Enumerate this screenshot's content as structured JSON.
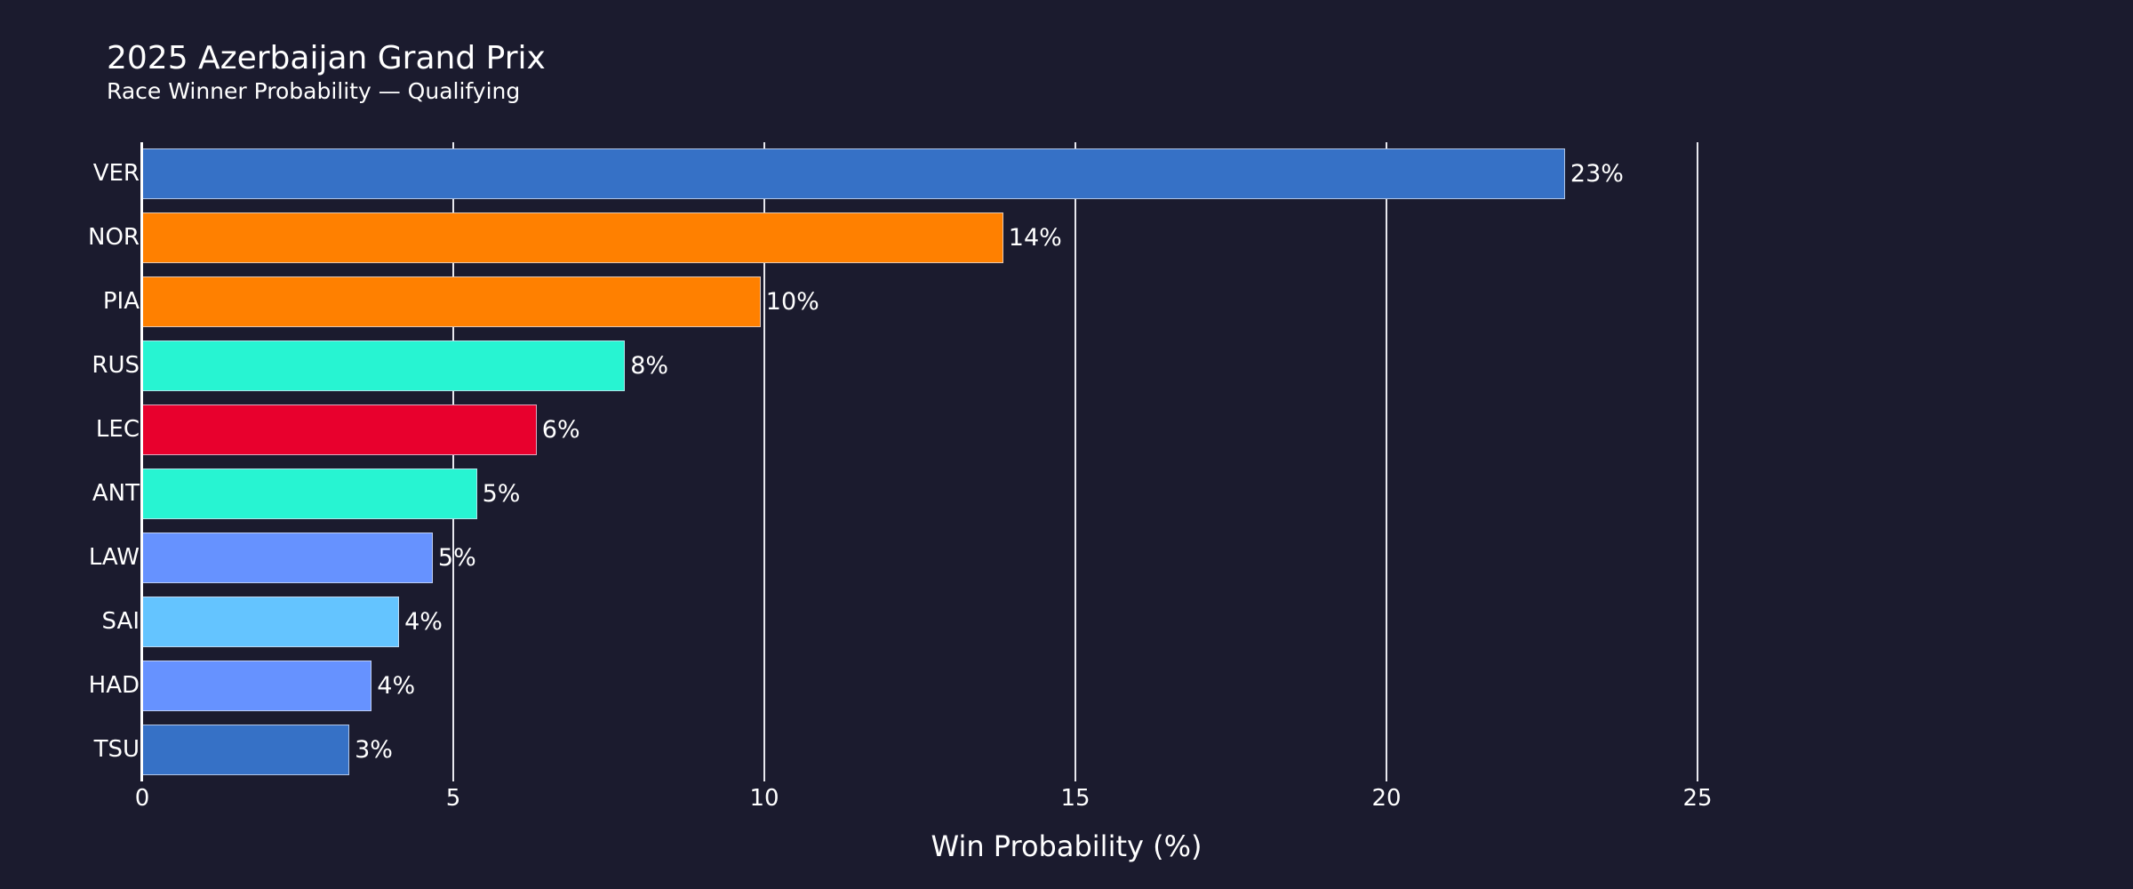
{
  "header": {
    "title": "2025 Azerbaijan Grand Prix",
    "subtitle": "Race Winner Probability — Qualifying"
  },
  "colors": {
    "background": "#1b1b2e",
    "red_bull": "#3671C6",
    "mclaren": "#FF8000",
    "mercedes": "#27F4D2",
    "ferrari": "#E8002D",
    "racing_bulls": "#6692FF",
    "williams": "#64C4FF"
  },
  "chart_data": {
    "type": "bar",
    "orientation": "horizontal",
    "title": "2025 Azerbaijan Grand Prix",
    "subtitle": "Race Winner Probability — Qualifying",
    "xlabel": "Win Probability (%)",
    "ylabel": "",
    "xlim": [
      0,
      25
    ],
    "xticks": [
      0,
      5,
      10,
      15,
      20,
      25
    ],
    "grid": "vertical",
    "legend": "none",
    "categories": [
      "VER",
      "NOR",
      "PIA",
      "RUS",
      "LEC",
      "ANT",
      "LAW",
      "SAI",
      "HAD",
      "TSU"
    ],
    "values": [
      22.87,
      13.84,
      9.94,
      7.76,
      6.34,
      5.38,
      4.67,
      4.13,
      3.69,
      3.33
    ],
    "data_labels": [
      "23%",
      "14%",
      "10%",
      "8%",
      "6%",
      "5%",
      "5%",
      "4%",
      "4%",
      "3%"
    ],
    "bar_colors": [
      "#3671C6",
      "#FF8000",
      "#FF8000",
      "#27F4D2",
      "#E8002D",
      "#27F4D2",
      "#6692FF",
      "#64C4FF",
      "#6692FF",
      "#3671C6"
    ]
  },
  "axis": {
    "x_ticks": [
      "0",
      "5",
      "10",
      "15",
      "20",
      "25"
    ],
    "x_title": "Win Probability (%)"
  },
  "bars": [
    {
      "driver": "VER",
      "label": "23%"
    },
    {
      "driver": "NOR",
      "label": "14%"
    },
    {
      "driver": "PIA",
      "label": "10%"
    },
    {
      "driver": "RUS",
      "label": "8%"
    },
    {
      "driver": "LEC",
      "label": "6%"
    },
    {
      "driver": "ANT",
      "label": "5%"
    },
    {
      "driver": "LAW",
      "label": "5%"
    },
    {
      "driver": "SAI",
      "label": "4%"
    },
    {
      "driver": "HAD",
      "label": "4%"
    },
    {
      "driver": "TSU",
      "label": "3%"
    }
  ]
}
